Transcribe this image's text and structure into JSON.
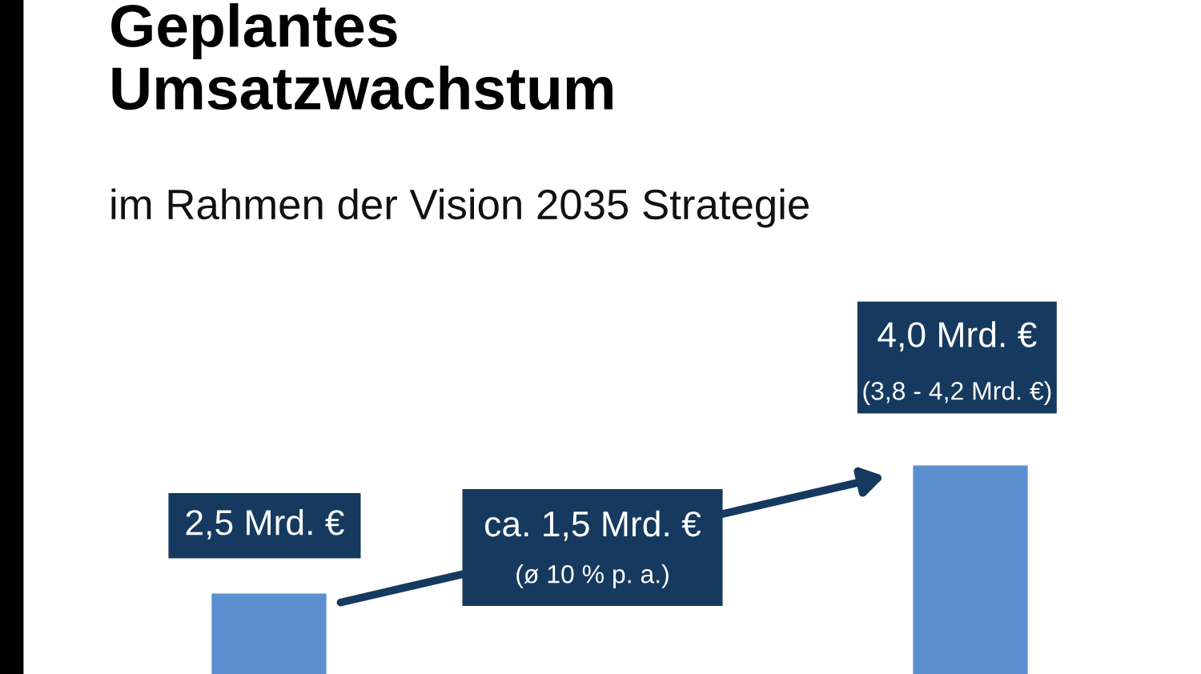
{
  "chart_data": {
    "type": "bar",
    "title": "Geplantes\nUmsatzwachstum",
    "subtitle": "im Rahmen der Vision 2035 Strategie",
    "categories": [
      null,
      null
    ],
    "values": [
      2.5,
      4.0
    ],
    "color": "#5b8fd0",
    "value_labels": [
      "2,5 Mrd. €",
      "4,0 Mrd. €\n(3,8 - 4,2 Mrd. €)"
    ],
    "grid": false,
    "annotations": [
      "ca. 1,5 Mrd. €\n(ø 10 % p. a.)"
    ]
  }
}
